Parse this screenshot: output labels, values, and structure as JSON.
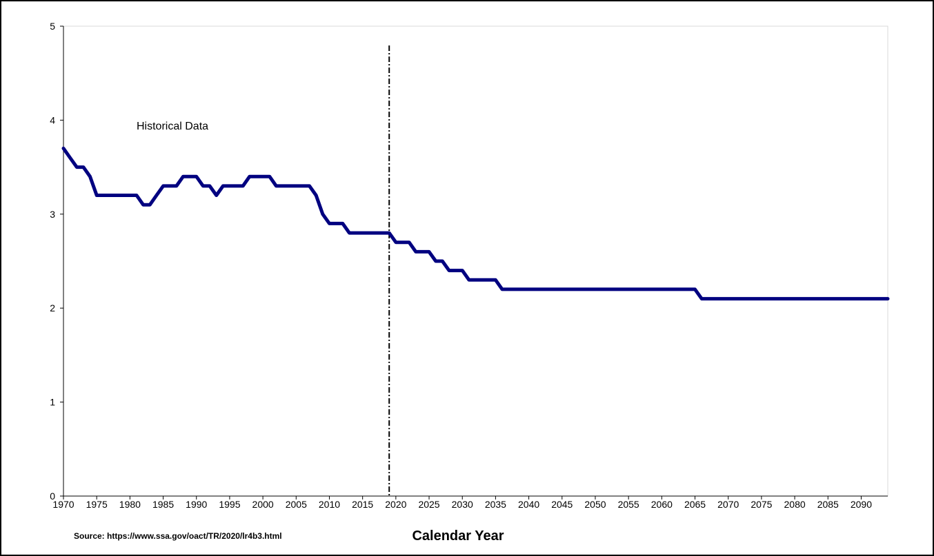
{
  "chart_data": {
    "type": "line",
    "title": "",
    "xlabel": "Calendar Year",
    "ylabel": "",
    "xlim": [
      1970,
      2094
    ],
    "ylim": [
      0,
      5
    ],
    "x_ticks": [
      1970,
      1975,
      1980,
      1985,
      1990,
      1995,
      2000,
      2005,
      2010,
      2015,
      2020,
      2025,
      2030,
      2035,
      2040,
      2045,
      2050,
      2055,
      2060,
      2065,
      2070,
      2075,
      2080,
      2085,
      2090
    ],
    "y_ticks": [
      0,
      1,
      2,
      3,
      4,
      5
    ],
    "grid": false,
    "legend": "none",
    "colors": {
      "line": "#000080",
      "divider": "#000000"
    },
    "divider_year": 2019,
    "annotation": {
      "text": "Historical Data",
      "x": 1981,
      "y": 3.95
    },
    "source": "Source: https://www.ssa.gov/oact/TR/2020/lr4b3.html",
    "series": [
      {
        "x": [
          1970,
          1971,
          1972,
          1973,
          1974,
          1975,
          1976,
          1977,
          1978,
          1979,
          1980,
          1981,
          1982,
          1983,
          1984,
          1985,
          1986,
          1987,
          1988,
          1989,
          1990,
          1991,
          1992,
          1993,
          1994,
          1995,
          1996,
          1997,
          1998,
          1999,
          2000,
          2001,
          2002,
          2003,
          2004,
          2005,
          2006,
          2007,
          2008,
          2009,
          2010,
          2011,
          2012,
          2013,
          2014,
          2015,
          2016,
          2017,
          2018,
          2019,
          2020,
          2021,
          2022,
          2023,
          2024,
          2025,
          2026,
          2027,
          2028,
          2029,
          2030,
          2031,
          2032,
          2033,
          2034,
          2035,
          2036,
          2037,
          2040,
          2045,
          2050,
          2055,
          2060,
          2065,
          2066,
          2070,
          2075,
          2080,
          2085,
          2090,
          2094
        ],
        "values": [
          3.7,
          3.6,
          3.5,
          3.5,
          3.4,
          3.2,
          3.2,
          3.2,
          3.2,
          3.2,
          3.2,
          3.2,
          3.1,
          3.1,
          3.2,
          3.3,
          3.3,
          3.3,
          3.4,
          3.4,
          3.4,
          3.3,
          3.3,
          3.2,
          3.3,
          3.3,
          3.3,
          3.3,
          3.4,
          3.4,
          3.4,
          3.4,
          3.3,
          3.3,
          3.3,
          3.3,
          3.3,
          3.3,
          3.2,
          3.0,
          2.9,
          2.9,
          2.9,
          2.8,
          2.8,
          2.8,
          2.8,
          2.8,
          2.8,
          2.8,
          2.7,
          2.7,
          2.7,
          2.6,
          2.6,
          2.6,
          2.5,
          2.5,
          2.4,
          2.4,
          2.4,
          2.3,
          2.3,
          2.3,
          2.3,
          2.3,
          2.2,
          2.2,
          2.2,
          2.2,
          2.2,
          2.2,
          2.2,
          2.2,
          2.1,
          2.1,
          2.1,
          2.1,
          2.1,
          2.1,
          2.1
        ]
      }
    ]
  }
}
